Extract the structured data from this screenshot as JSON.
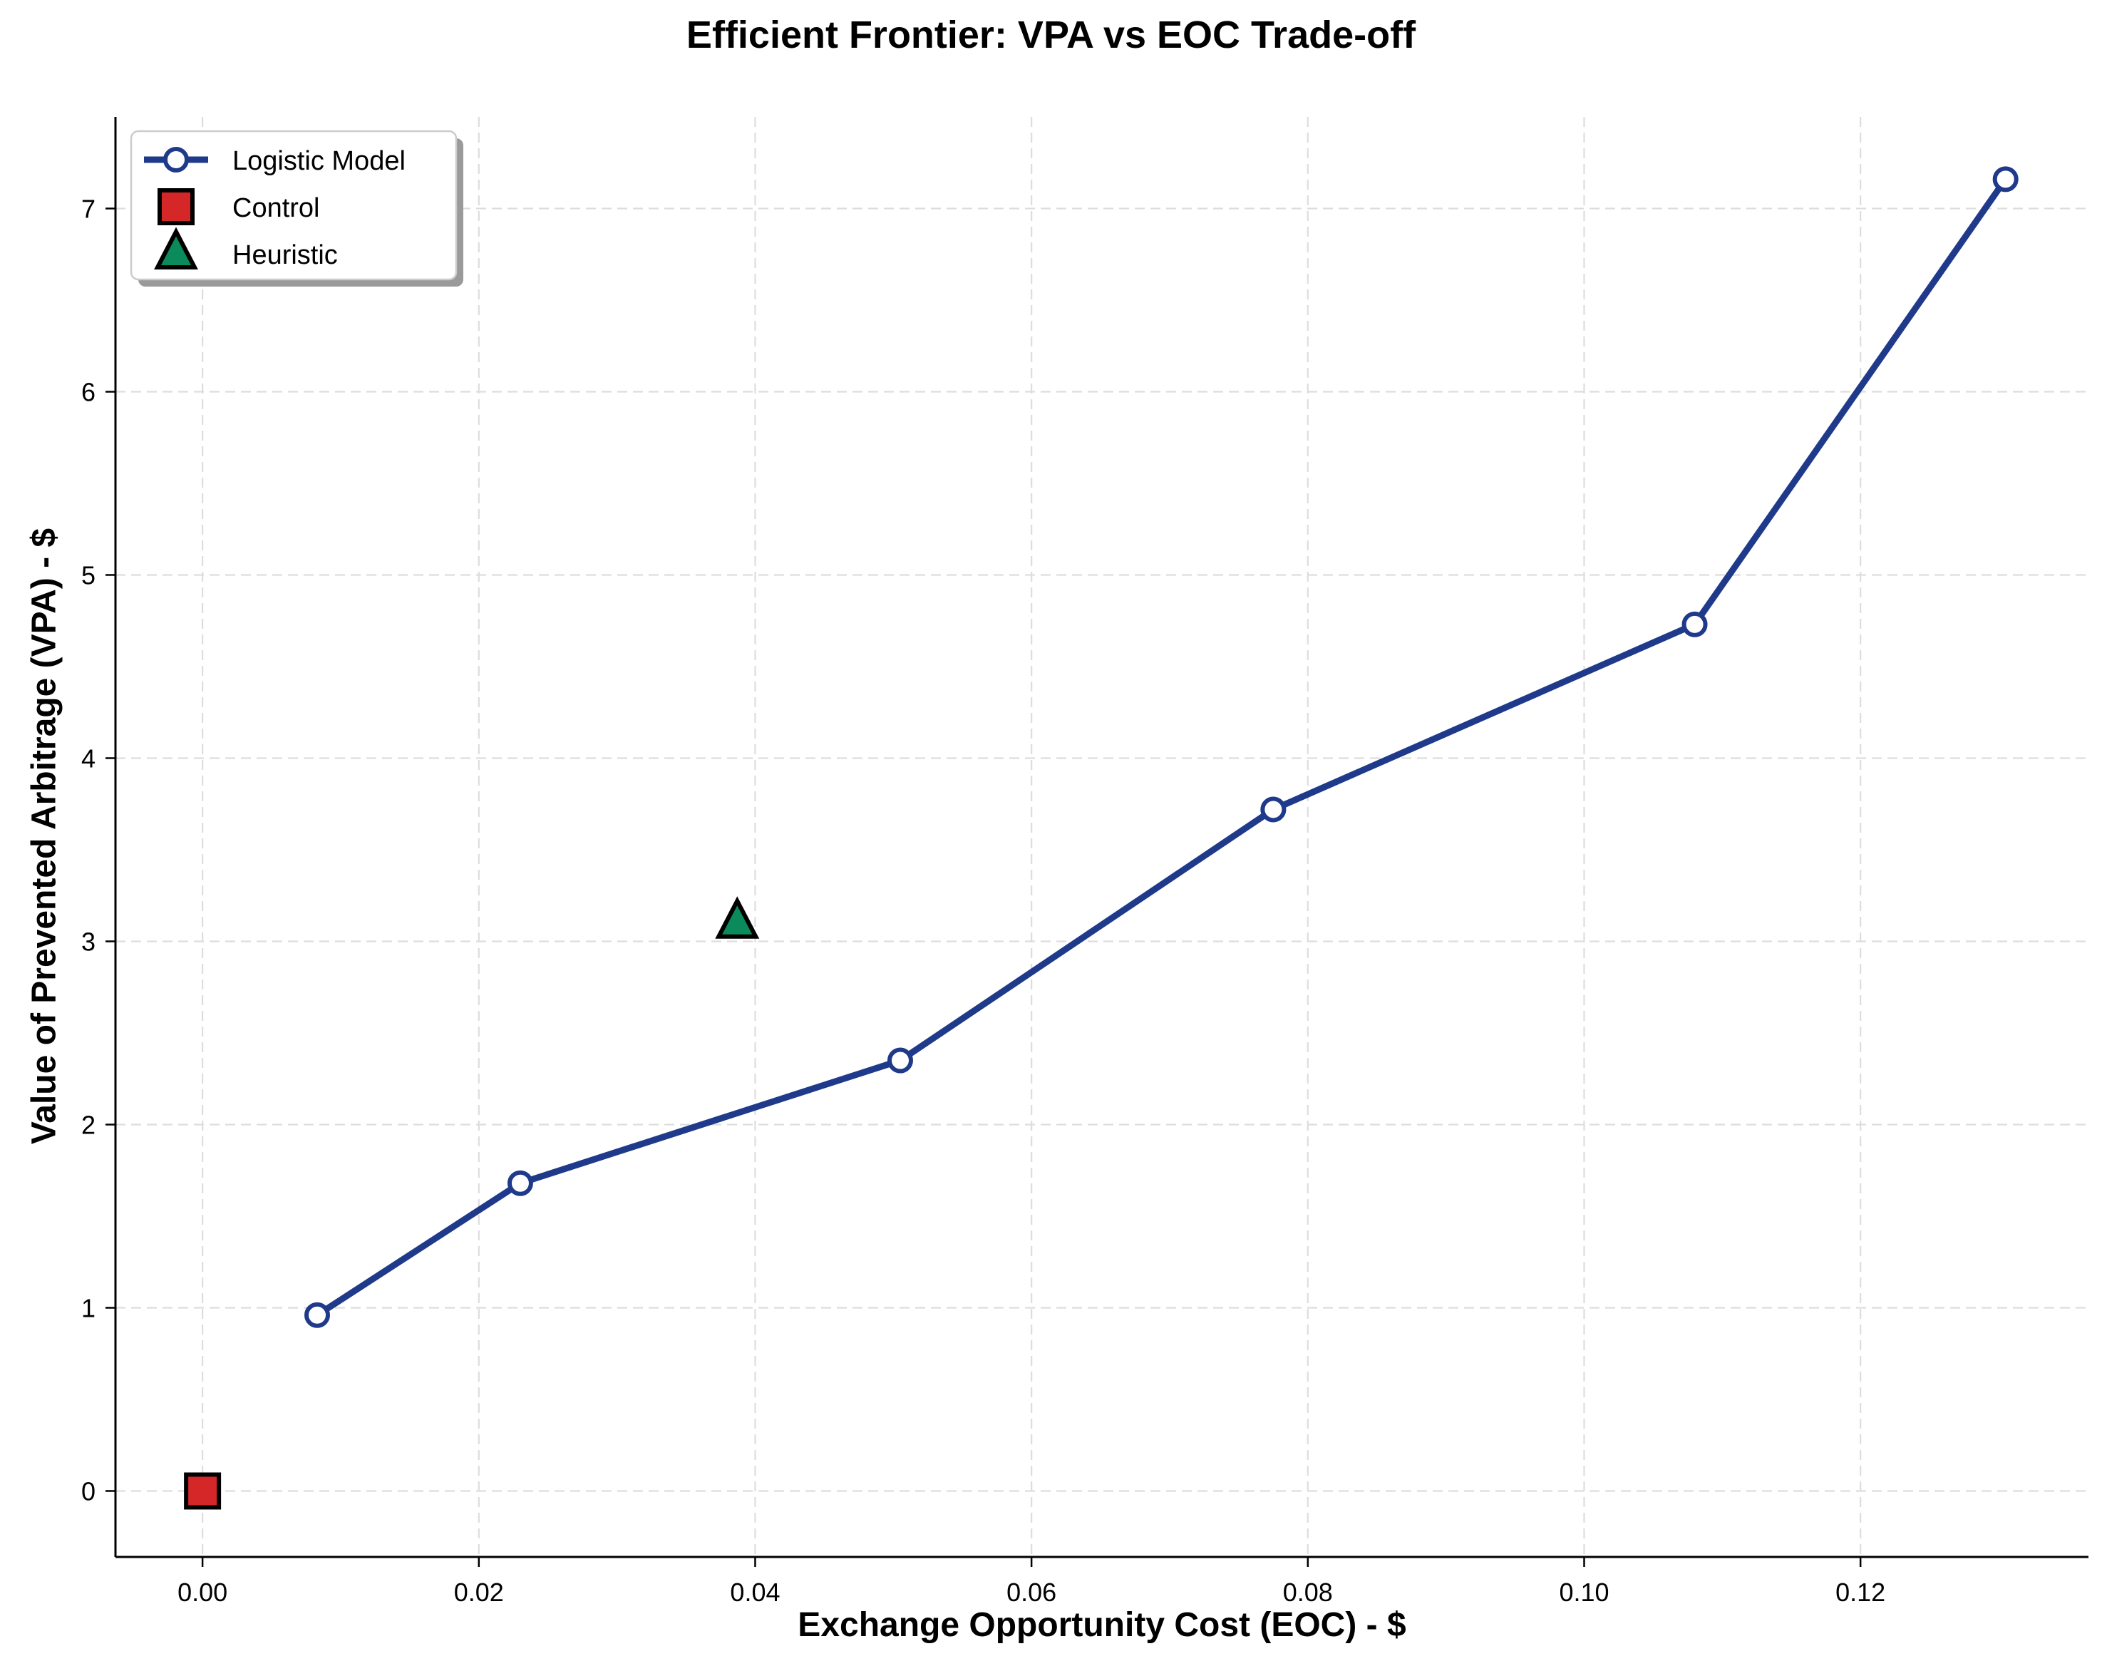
{
  "chart_data": {
    "type": "line",
    "title": "Efficient Frontier: VPA vs EOC Trade-off",
    "xlabel": "Exchange Opportunity Cost (EOC) - $",
    "ylabel": "Value of Prevented Arbitrage (VPA) - $",
    "xlim": [
      -0.0063,
      0.1365
    ],
    "ylim": [
      -0.36,
      7.5
    ],
    "xticks": [
      0.0,
      0.02,
      0.04,
      0.06,
      0.08,
      0.1,
      0.12
    ],
    "xtick_labels": [
      "0.00",
      "0.02",
      "0.04",
      "0.06",
      "0.08",
      "0.10",
      "0.12"
    ],
    "yticks": [
      0,
      1,
      2,
      3,
      4,
      5,
      6,
      7
    ],
    "ytick_labels": [
      "0",
      "1",
      "2",
      "3",
      "4",
      "5",
      "6",
      "7"
    ],
    "grid": true,
    "legend_position": "top-left",
    "series": [
      {
        "name": "Logistic Model",
        "kind": "line",
        "color": "#1f3a8a",
        "marker": "circle",
        "x": [
          0.0083,
          0.023,
          0.0505,
          0.0775,
          0.108,
          0.1305
        ],
        "y": [
          0.96,
          1.68,
          2.35,
          3.72,
          4.73,
          7.16
        ]
      },
      {
        "name": "Control",
        "kind": "scatter",
        "color": "#d62728",
        "marker": "square",
        "x": [
          0.0
        ],
        "y": [
          0.0
        ]
      },
      {
        "name": "Heuristic",
        "kind": "scatter",
        "color": "#0b8a5c",
        "marker": "triangle",
        "x": [
          0.0387
        ],
        "y": [
          3.1
        ]
      }
    ]
  }
}
